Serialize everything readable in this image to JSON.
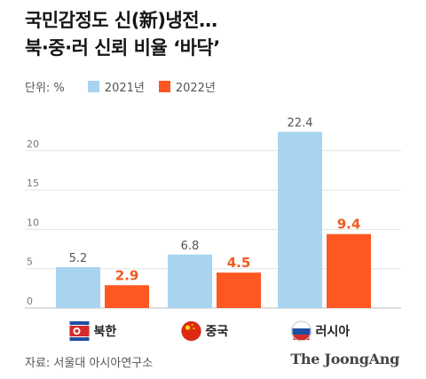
{
  "title_line1": "국민감정도 신(新)냉전…",
  "title_line2": "북·중·러 신뢰 비율 ‘바닥’",
  "unit_label": "단위: %",
  "source": "자료: 서울대 아시아연구소",
  "brand": "The JoongAng",
  "colors": {
    "series_2021": "#a9d4f0",
    "series_2022": "#ff5722",
    "label_2022": "#f05a1e"
  },
  "chart_data": {
    "type": "bar",
    "categories": [
      "북한",
      "중국",
      "러시아"
    ],
    "category_flags": [
      "north-korea-flag-icon",
      "china-flag-icon",
      "russia-flag-icon"
    ],
    "series": [
      {
        "name": "2021년",
        "values": [
          5.2,
          6.8,
          22.4
        ]
      },
      {
        "name": "2022년",
        "values": [
          2.9,
          4.5,
          9.4
        ]
      }
    ],
    "value_labels": [
      [
        "5.2",
        "6.8",
        "22.4"
      ],
      [
        "2.9",
        "4.5",
        "9.4"
      ]
    ],
    "yticks": [
      "0",
      "5",
      "10",
      "15",
      "20"
    ],
    "ylim": [
      0,
      25
    ],
    "grid": true,
    "legend_position": "top-left"
  }
}
